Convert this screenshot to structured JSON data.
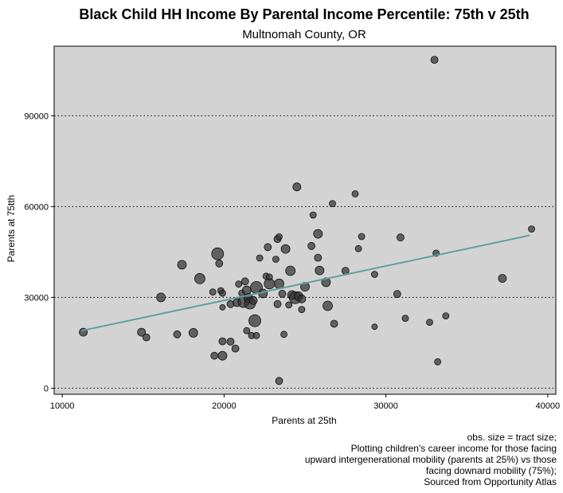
{
  "chart_data": {
    "type": "scatter",
    "title": "Black Child HH Income By Parental Income Percentile: 75th v 25th",
    "subtitle": "Multnomah County, OR",
    "xlabel": "Parents at 25th",
    "ylabel": "Parents at 75tth",
    "xlim": [
      9500,
      40500
    ],
    "ylim": [
      -2000,
      113000
    ],
    "x_ticks": [
      10000,
      20000,
      30000,
      40000
    ],
    "y_ticks": [
      0,
      30000,
      60000,
      90000
    ],
    "grid": "horizontal dotted",
    "panel_color": "#d3d3d3",
    "point_color": "#333333",
    "trend_color": "#5f9ea0",
    "trend_line": {
      "x": [
        11200,
        38900
      ],
      "y": [
        19000,
        50500
      ]
    },
    "caption": [
      "obs. size = tract size;",
      "Plotting children's career income for those facing",
      "upward intergenerational mobility (parents at 25%) vs those",
      "facing downard mobility (75%);",
      "Sourced from Opportunity Atlas"
    ],
    "points": [
      {
        "x": 11300,
        "y": 18500,
        "s": 1.0
      },
      {
        "x": 14900,
        "y": 18500,
        "s": 1.0
      },
      {
        "x": 15200,
        "y": 16800,
        "s": 0.9
      },
      {
        "x": 16100,
        "y": 30000,
        "s": 1.1
      },
      {
        "x": 17100,
        "y": 17800,
        "s": 0.9
      },
      {
        "x": 17400,
        "y": 40800,
        "s": 1.1
      },
      {
        "x": 18100,
        "y": 18300,
        "s": 1.1
      },
      {
        "x": 18500,
        "y": 36200,
        "s": 1.3
      },
      {
        "x": 19300,
        "y": 31800,
        "s": 0.8
      },
      {
        "x": 19400,
        "y": 10700,
        "s": 0.9
      },
      {
        "x": 19600,
        "y": 44400,
        "s": 1.5
      },
      {
        "x": 19700,
        "y": 41200,
        "s": 0.9
      },
      {
        "x": 19800,
        "y": 32200,
        "s": 0.8
      },
      {
        "x": 19900,
        "y": 31400,
        "s": 0.8
      },
      {
        "x": 19900,
        "y": 26700,
        "s": 0.7
      },
      {
        "x": 19900,
        "y": 15500,
        "s": 0.9
      },
      {
        "x": 19900,
        "y": 10700,
        "s": 1.1
      },
      {
        "x": 20400,
        "y": 27800,
        "s": 0.9
      },
      {
        "x": 20400,
        "y": 15400,
        "s": 0.9
      },
      {
        "x": 20700,
        "y": 13100,
        "s": 0.9
      },
      {
        "x": 20800,
        "y": 28300,
        "s": 1.0
      },
      {
        "x": 20900,
        "y": 34400,
        "s": 0.8
      },
      {
        "x": 21100,
        "y": 31400,
        "s": 0.8
      },
      {
        "x": 21200,
        "y": 28500,
        "s": 1.4
      },
      {
        "x": 21300,
        "y": 35300,
        "s": 0.9
      },
      {
        "x": 21400,
        "y": 32300,
        "s": 1.1
      },
      {
        "x": 21400,
        "y": 19000,
        "s": 0.8
      },
      {
        "x": 21500,
        "y": 29800,
        "s": 1.1
      },
      {
        "x": 21600,
        "y": 28000,
        "s": 1.4
      },
      {
        "x": 21700,
        "y": 17400,
        "s": 0.8
      },
      {
        "x": 21800,
        "y": 29000,
        "s": 1.0
      },
      {
        "x": 21900,
        "y": 22300,
        "s": 1.5
      },
      {
        "x": 22000,
        "y": 33300,
        "s": 1.5
      },
      {
        "x": 22000,
        "y": 17400,
        "s": 0.8
      },
      {
        "x": 22200,
        "y": 43000,
        "s": 0.8
      },
      {
        "x": 22400,
        "y": 31300,
        "s": 1.1
      },
      {
        "x": 22600,
        "y": 37000,
        "s": 0.8
      },
      {
        "x": 22700,
        "y": 46600,
        "s": 0.9
      },
      {
        "x": 22800,
        "y": 34500,
        "s": 1.3
      },
      {
        "x": 22800,
        "y": 36700,
        "s": 0.8
      },
      {
        "x": 23200,
        "y": 42600,
        "s": 0.8
      },
      {
        "x": 23300,
        "y": 27800,
        "s": 0.9
      },
      {
        "x": 23300,
        "y": 49300,
        "s": 0.9
      },
      {
        "x": 23400,
        "y": 34500,
        "s": 1.2
      },
      {
        "x": 23400,
        "y": 50000,
        "s": 0.8
      },
      {
        "x": 23400,
        "y": 2400,
        "s": 0.9
      },
      {
        "x": 23600,
        "y": 31200,
        "s": 0.9
      },
      {
        "x": 23700,
        "y": 17800,
        "s": 0.8
      },
      {
        "x": 23800,
        "y": 46000,
        "s": 1.1
      },
      {
        "x": 24000,
        "y": 27500,
        "s": 0.8
      },
      {
        "x": 24100,
        "y": 38800,
        "s": 1.2
      },
      {
        "x": 24200,
        "y": 30800,
        "s": 1.1
      },
      {
        "x": 24400,
        "y": 29900,
        "s": 1.5
      },
      {
        "x": 24500,
        "y": 66500,
        "s": 1.0
      },
      {
        "x": 24600,
        "y": 30400,
        "s": 1.1
      },
      {
        "x": 24800,
        "y": 26000,
        "s": 0.8
      },
      {
        "x": 24800,
        "y": 29500,
        "s": 1.0
      },
      {
        "x": 25000,
        "y": 33500,
        "s": 1.1
      },
      {
        "x": 25400,
        "y": 47000,
        "s": 0.9
      },
      {
        "x": 25500,
        "y": 57200,
        "s": 0.8
      },
      {
        "x": 25800,
        "y": 51000,
        "s": 1.1
      },
      {
        "x": 25800,
        "y": 43100,
        "s": 0.9
      },
      {
        "x": 25900,
        "y": 38900,
        "s": 1.1
      },
      {
        "x": 26300,
        "y": 35000,
        "s": 1.1
      },
      {
        "x": 26400,
        "y": 27200,
        "s": 1.2
      },
      {
        "x": 26700,
        "y": 61000,
        "s": 0.8
      },
      {
        "x": 26800,
        "y": 21300,
        "s": 0.9
      },
      {
        "x": 27500,
        "y": 38800,
        "s": 0.9
      },
      {
        "x": 28100,
        "y": 64200,
        "s": 0.8
      },
      {
        "x": 28300,
        "y": 46100,
        "s": 0.8
      },
      {
        "x": 28500,
        "y": 50100,
        "s": 0.8
      },
      {
        "x": 29300,
        "y": 37600,
        "s": 0.8
      },
      {
        "x": 29300,
        "y": 20300,
        "s": 0.7
      },
      {
        "x": 30700,
        "y": 31100,
        "s": 0.9
      },
      {
        "x": 30900,
        "y": 49800,
        "s": 0.9
      },
      {
        "x": 31200,
        "y": 23100,
        "s": 0.8
      },
      {
        "x": 32700,
        "y": 21800,
        "s": 0.8
      },
      {
        "x": 33000,
        "y": 108500,
        "s": 0.9
      },
      {
        "x": 33100,
        "y": 44600,
        "s": 0.8
      },
      {
        "x": 33200,
        "y": 8700,
        "s": 0.8
      },
      {
        "x": 33700,
        "y": 23900,
        "s": 0.8
      },
      {
        "x": 37200,
        "y": 36300,
        "s": 1.0
      },
      {
        "x": 39000,
        "y": 52600,
        "s": 0.8
      }
    ]
  }
}
